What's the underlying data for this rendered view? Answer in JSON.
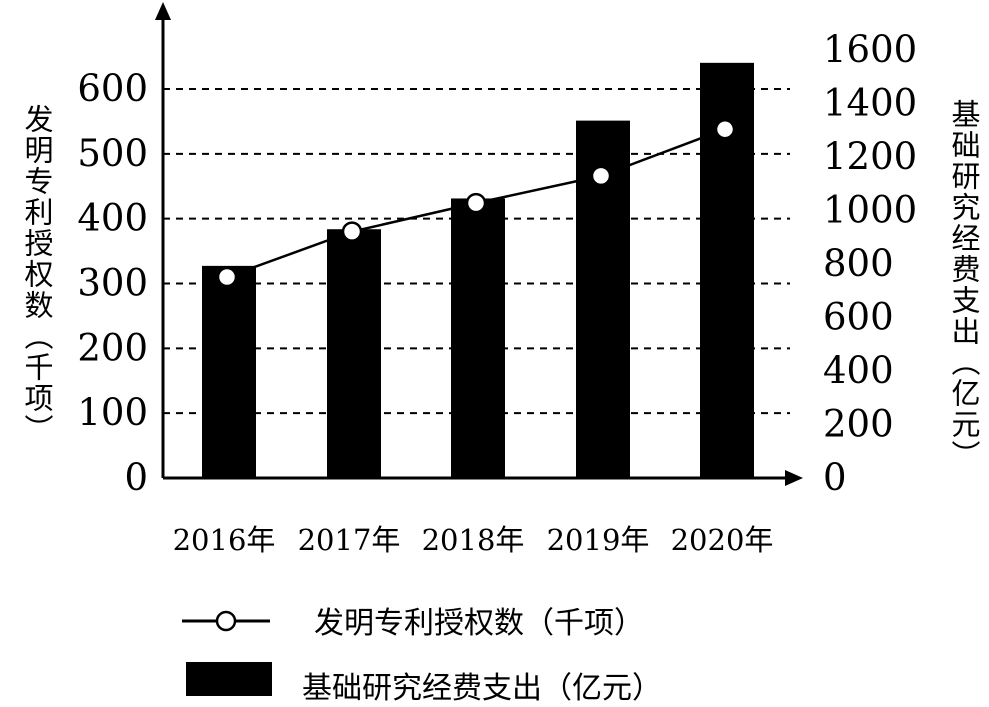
{
  "chart_data": {
    "type": "bar",
    "categories": [
      "2016年",
      "2017年",
      "2018年",
      "2019年",
      "2020年"
    ],
    "series": [
      {
        "name": "基础研究经费支出（亿元）",
        "type": "bar",
        "axis": "right",
        "values": [
          793,
          930,
          1045,
          1336,
          1552
        ]
      },
      {
        "name": "发明专利授权数（千项）",
        "type": "line",
        "axis": "left",
        "values": [
          310,
          380,
          424,
          466,
          538
        ]
      }
    ],
    "left_axis": {
      "label": "发明专利授权数（千项）",
      "ticks": [
        "0",
        "100",
        "200",
        "300",
        "400",
        "500",
        "600"
      ]
    },
    "right_axis": {
      "label": "基础研究经费支出（亿元）",
      "ticks": [
        "0",
        "200",
        "400",
        "600",
        "800",
        "1000",
        "1200",
        "1400",
        "1600"
      ]
    },
    "grid": "dashed horizontal",
    "legend_placement": "bottom",
    "colors": {
      "bar": "#000000",
      "line": "#000000",
      "marker_fill": "#ffffff"
    }
  }
}
